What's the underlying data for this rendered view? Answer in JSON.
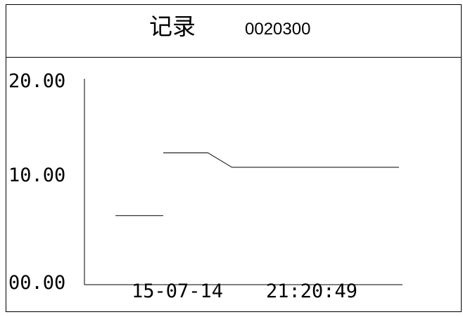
{
  "header": {
    "title": "记录",
    "code": "0020300"
  },
  "chart_data": {
    "type": "line",
    "title": "",
    "xlabel": "",
    "ylabel": "",
    "ylim": [
      0,
      20
    ],
    "yticks": [
      "20.00",
      "10.00",
      "00.00"
    ],
    "yticks_values": [
      20,
      10,
      0
    ],
    "x_range": [
      0,
      100
    ],
    "x_labels": [
      "15-07-14",
      "21:20:49"
    ],
    "series": [
      {
        "segments": [
          {
            "x": [
              5,
              21
            ],
            "y": [
              6.7,
              6.7
            ]
          },
          {
            "x": [
              21,
              36,
              44,
              100
            ],
            "y": [
              12.8,
              12.8,
              11.4,
              11.4
            ]
          }
        ]
      }
    ],
    "grid": false
  }
}
